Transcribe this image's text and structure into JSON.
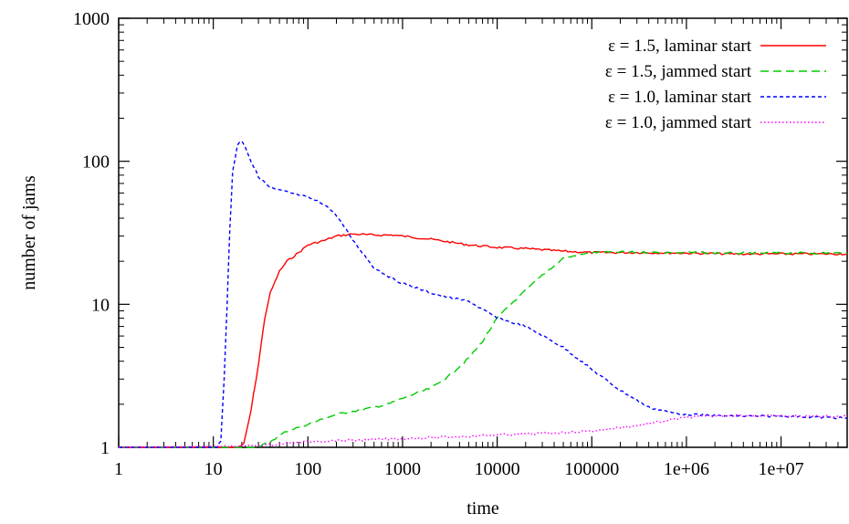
{
  "chart_data": {
    "type": "line",
    "xlabel": "time",
    "ylabel": "number of jams",
    "x_scale": "log",
    "y_scale": "log",
    "xlim": [
      1,
      50000000
    ],
    "ylim": [
      1,
      1000
    ],
    "x_ticks": [
      1,
      10,
      100,
      1000,
      10000,
      100000,
      1000000,
      10000000
    ],
    "x_tick_labels": [
      "1",
      "10",
      "100",
      "1000",
      "10000",
      "100000",
      "1e+06",
      "1e+07"
    ],
    "y_ticks": [
      1,
      10,
      100,
      1000
    ],
    "y_tick_labels": [
      "1",
      "10",
      "100",
      "1000"
    ],
    "grid": false,
    "legend_position": "top-right",
    "series": [
      {
        "name": "ε = 1.5, laminar start",
        "color": "#ff0000",
        "dash": "solid",
        "points": [
          [
            1,
            1
          ],
          [
            18,
            1
          ],
          [
            21,
            1.05
          ],
          [
            25,
            1.8
          ],
          [
            30,
            3.8
          ],
          [
            35,
            8
          ],
          [
            40,
            12
          ],
          [
            50,
            17
          ],
          [
            60,
            20
          ],
          [
            80,
            23
          ],
          [
            100,
            26
          ],
          [
            150,
            28
          ],
          [
            200,
            30
          ],
          [
            300,
            31
          ],
          [
            500,
            30.5
          ],
          [
            800,
            30.5
          ],
          [
            1000,
            30
          ],
          [
            2000,
            28.5
          ],
          [
            5000,
            26
          ],
          [
            10000,
            25
          ],
          [
            20000,
            24.5
          ],
          [
            50000,
            23.5
          ],
          [
            100000,
            23
          ],
          [
            300000,
            23
          ],
          [
            1000000,
            22.8
          ],
          [
            3000000,
            22.5
          ],
          [
            10000000,
            22.5
          ],
          [
            50000000,
            22.5
          ]
        ]
      },
      {
        "name": "ε = 1.5, jammed start",
        "color": "#00cc00",
        "dash": "long",
        "points": [
          [
            1,
            1
          ],
          [
            30,
            1
          ],
          [
            40,
            1.1
          ],
          [
            60,
            1.3
          ],
          [
            100,
            1.45
          ],
          [
            200,
            1.7
          ],
          [
            400,
            1.85
          ],
          [
            700,
            2
          ],
          [
            1000,
            2.2
          ],
          [
            2000,
            2.6
          ],
          [
            3000,
            3.1
          ],
          [
            5000,
            4.2
          ],
          [
            7000,
            5.5
          ],
          [
            10000,
            8
          ],
          [
            15000,
            10.5
          ],
          [
            20000,
            12.5
          ],
          [
            30000,
            16
          ],
          [
            50000,
            21
          ],
          [
            100000,
            23
          ],
          [
            200000,
            23.2
          ],
          [
            500000,
            23
          ],
          [
            1000000,
            23
          ],
          [
            3000000,
            22.8
          ],
          [
            10000000,
            22.8
          ],
          [
            50000000,
            22.8
          ]
        ]
      },
      {
        "name": "ε = 1.0, laminar start",
        "color": "#0000ff",
        "dash": "short",
        "points": [
          [
            1,
            1
          ],
          [
            11,
            1
          ],
          [
            12,
            1.1
          ],
          [
            13,
            3
          ],
          [
            14,
            10
          ],
          [
            15,
            35
          ],
          [
            16,
            85
          ],
          [
            18,
            130
          ],
          [
            20,
            140
          ],
          [
            22,
            125
          ],
          [
            25,
            100
          ],
          [
            30,
            78
          ],
          [
            40,
            65
          ],
          [
            60,
            61
          ],
          [
            100,
            56
          ],
          [
            150,
            50
          ],
          [
            200,
            42
          ],
          [
            300,
            28
          ],
          [
            500,
            18
          ],
          [
            800,
            15
          ],
          [
            1000,
            14
          ],
          [
            2000,
            12
          ],
          [
            3000,
            11.2
          ],
          [
            5000,
            10.5
          ],
          [
            10000,
            8
          ],
          [
            20000,
            7
          ],
          [
            50000,
            5
          ],
          [
            100000,
            3.5
          ],
          [
            200000,
            2.5
          ],
          [
            400000,
            1.9
          ],
          [
            700000,
            1.75
          ],
          [
            1000000,
            1.7
          ],
          [
            3000000,
            1.65
          ],
          [
            10000000,
            1.65
          ],
          [
            50000000,
            1.6
          ]
        ]
      },
      {
        "name": "ε = 1.0, jammed start",
        "color": "#ff00ff",
        "dash": "dotted",
        "points": [
          [
            1,
            1
          ],
          [
            20,
            1.02
          ],
          [
            50,
            1.05
          ],
          [
            100,
            1.1
          ],
          [
            300,
            1.12
          ],
          [
            1000,
            1.15
          ],
          [
            3000,
            1.18
          ],
          [
            10000,
            1.22
          ],
          [
            30000,
            1.25
          ],
          [
            100000,
            1.3
          ],
          [
            300000,
            1.42
          ],
          [
            1000000,
            1.62
          ],
          [
            3000000,
            1.68
          ],
          [
            10000000,
            1.65
          ],
          [
            50000000,
            1.65
          ]
        ]
      }
    ]
  }
}
